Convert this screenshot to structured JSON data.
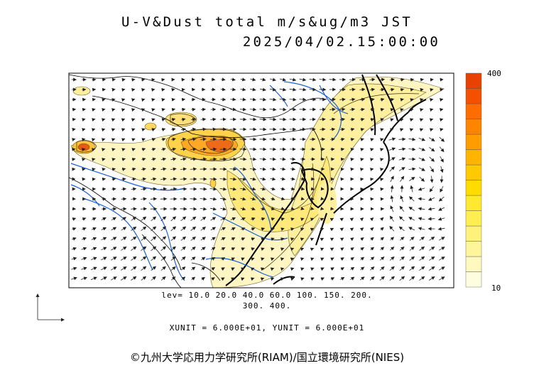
{
  "title": "U-V&Dust total m/s&ug/m3 JST",
  "datetime": "2025/04/02.15:00:00",
  "contour_levels_line1": "lev= 10.0 20.0 40.0 60.0 100. 150. 200.",
  "contour_levels_line2": "300. 400.",
  "unit_line": "XUNIT = 6.000E+01, YUNIT = 6.000E+01",
  "credit": "©九州大学応用力学研究所(RIAM)/国立環境研究所(NIES)",
  "colorbar": {
    "max_label": "400",
    "min_label": "10",
    "colors": [
      "#fffde0",
      "#fff9c0",
      "#fff59a",
      "#fff27a",
      "#ffee50",
      "#ffe830",
      "#ffdc00",
      "#ffca00",
      "#ffb400",
      "#ff9c00",
      "#ff8400",
      "#ff6c00",
      "#f55000",
      "#e84200"
    ]
  },
  "colors": {
    "coast": "#000000",
    "river": "#1a5fd6",
    "border": "#000000",
    "dust_light": "#fff6b8",
    "dust_mid": "#ffe870",
    "dust_high": "#ffb030",
    "dust_peak": "#e84a10"
  }
}
